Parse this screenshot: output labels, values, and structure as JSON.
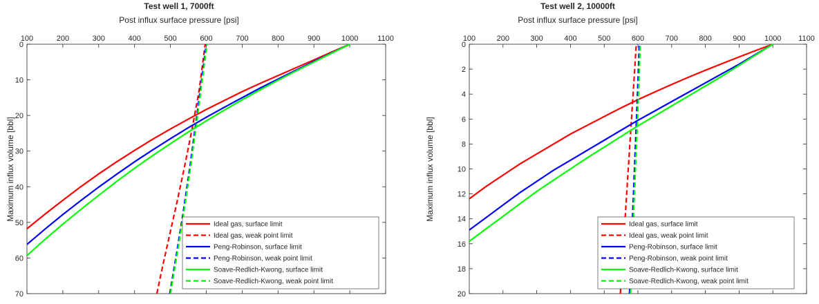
{
  "chart_data": [
    {
      "type": "line",
      "title": "Test well 1, 7000ft",
      "xlabel": "Post influx surface pressure [psi]",
      "ylabel": "Maximum influx volume [bbl]",
      "xlim": [
        100,
        1100
      ],
      "ylim": [
        0,
        70
      ],
      "y_reversed": true,
      "x_axis_position": "top",
      "xticks": [
        100,
        200,
        300,
        400,
        500,
        600,
        700,
        800,
        900,
        1000,
        1100
      ],
      "yticks": [
        0,
        10,
        20,
        30,
        40,
        50,
        60,
        70
      ],
      "legend_position": "bottom-right",
      "grid": false,
      "series": [
        {
          "name": "Ideal gas, surface limit",
          "color": "#ff0000",
          "dash": "solid",
          "x": [
            100,
            150,
            200,
            250,
            300,
            350,
            400,
            450,
            500,
            550,
            600,
            650,
            700,
            750,
            800,
            850,
            900,
            950,
            1000
          ],
          "y": [
            51.8,
            47.7,
            43.8,
            40.0,
            36.4,
            33.0,
            29.8,
            26.7,
            23.8,
            21.0,
            18.3,
            15.8,
            13.3,
            11.0,
            8.8,
            6.6,
            4.4,
            2.2,
            0
          ]
        },
        {
          "name": "Ideal gas, weak point limit",
          "color": "#ff0000",
          "dash": "dashed",
          "x": [
            462,
            480,
            500,
            520,
            540,
            560,
            580,
            597
          ],
          "y": [
            70,
            61.5,
            52.5,
            43.5,
            34.0,
            24.0,
            13.0,
            0
          ]
        },
        {
          "name": "Peng-Robinson, surface limit",
          "color": "#0000ff",
          "dash": "solid",
          "x": [
            100,
            150,
            200,
            250,
            300,
            350,
            400,
            450,
            500,
            550,
            600,
            650,
            700,
            750,
            800,
            850,
            900,
            950,
            1000
          ],
          "y": [
            56.2,
            51.9,
            47.8,
            43.9,
            40.1,
            36.5,
            33.0,
            29.7,
            26.5,
            23.4,
            20.5,
            17.7,
            15.0,
            12.3,
            9.8,
            7.3,
            4.8,
            2.4,
            0
          ]
        },
        {
          "name": "Peng-Robinson, weak point limit",
          "color": "#0000ff",
          "dash": "dashed",
          "x": [
            498,
            515,
            535,
            555,
            575,
            600
          ],
          "y": [
            70,
            60.0,
            47.5,
            34.0,
            19.0,
            0
          ]
        },
        {
          "name": "Soave-Redlich-Kwong, surface limit",
          "color": "#00ff00",
          "dash": "solid",
          "x": [
            100,
            150,
            200,
            250,
            300,
            350,
            400,
            450,
            500,
            550,
            600,
            650,
            700,
            750,
            800,
            850,
            900,
            950,
            1000
          ],
          "y": [
            59.3,
            54.8,
            50.5,
            46.4,
            42.4,
            38.5,
            34.8,
            31.3,
            27.9,
            24.6,
            21.5,
            18.5,
            15.6,
            12.8,
            10.1,
            7.5,
            5.0,
            2.5,
            0
          ]
        },
        {
          "name": "Soave-Redlich-Kwong, weak point limit",
          "color": "#00ff00",
          "dash": "dashed",
          "x": [
            500,
            517,
            537,
            557,
            577,
            602
          ],
          "y": [
            70,
            60.0,
            47.5,
            34.0,
            19.0,
            0
          ]
        }
      ]
    },
    {
      "type": "line",
      "title": "Test well 2, 10000ft",
      "xlabel": "Post influx surface pressure [psi]",
      "ylabel": "Maximum influx volume [bbl]",
      "xlim": [
        100,
        1100
      ],
      "ylim": [
        0,
        20
      ],
      "y_reversed": true,
      "x_axis_position": "top",
      "xticks": [
        100,
        200,
        300,
        400,
        500,
        600,
        700,
        800,
        900,
        1000,
        1100
      ],
      "yticks": [
        0,
        2,
        4,
        6,
        8,
        10,
        12,
        14,
        16,
        18,
        20
      ],
      "legend_position": "bottom-right",
      "grid": false,
      "series": [
        {
          "name": "Ideal gas, surface limit",
          "color": "#ff0000",
          "dash": "solid",
          "x": [
            100,
            150,
            200,
            250,
            300,
            350,
            400,
            450,
            500,
            550,
            600,
            650,
            700,
            750,
            800,
            850,
            900,
            950,
            1000
          ],
          "y": [
            12.4,
            11.4,
            10.5,
            9.6,
            8.8,
            8.0,
            7.2,
            6.5,
            5.8,
            5.1,
            4.45,
            3.83,
            3.23,
            2.65,
            2.09,
            1.55,
            1.02,
            0.5,
            0
          ]
        },
        {
          "name": "Ideal gas, weak point limit",
          "color": "#ff0000",
          "dash": "dashed",
          "x": [
            548,
            555,
            563,
            571,
            579,
            587,
            595
          ],
          "y": [
            20,
            17.0,
            13.6,
            10.2,
            6.8,
            3.4,
            0
          ]
        },
        {
          "name": "Peng-Robinson, surface limit",
          "color": "#0000ff",
          "dash": "solid",
          "x": [
            100,
            150,
            200,
            250,
            300,
            350,
            400,
            450,
            500,
            550,
            600,
            650,
            700,
            750,
            800,
            850,
            900,
            950,
            1000
          ],
          "y": [
            14.9,
            13.9,
            12.9,
            11.9,
            11.0,
            10.1,
            9.3,
            8.5,
            7.7,
            6.9,
            6.1,
            5.35,
            4.6,
            3.85,
            3.1,
            2.35,
            1.6,
            0.8,
            0
          ]
        },
        {
          "name": "Peng-Robinson, weak point limit",
          "color": "#0000ff",
          "dash": "dashed",
          "x": [
            575,
            580,
            586,
            592,
            598,
            604
          ],
          "y": [
            20,
            16.5,
            12.5,
            8.5,
            4.5,
            0
          ]
        },
        {
          "name": "Soave-Redlich-Kwong, surface limit",
          "color": "#00ff00",
          "dash": "solid",
          "x": [
            100,
            150,
            200,
            250,
            300,
            350,
            400,
            450,
            500,
            550,
            600,
            650,
            700,
            750,
            800,
            850,
            900,
            950,
            1000
          ],
          "y": [
            15.8,
            14.8,
            13.8,
            12.8,
            11.8,
            10.9,
            10.0,
            9.1,
            8.25,
            7.4,
            6.55,
            5.75,
            4.95,
            4.15,
            3.35,
            2.55,
            1.7,
            0.85,
            0
          ]
        },
        {
          "name": "Soave-Redlich-Kwong, weak point limit",
          "color": "#00ff00",
          "dash": "dashed",
          "x": [
            578,
            583,
            589,
            595,
            601,
            607
          ],
          "y": [
            20,
            16.5,
            12.5,
            8.5,
            4.5,
            0
          ]
        }
      ]
    }
  ]
}
